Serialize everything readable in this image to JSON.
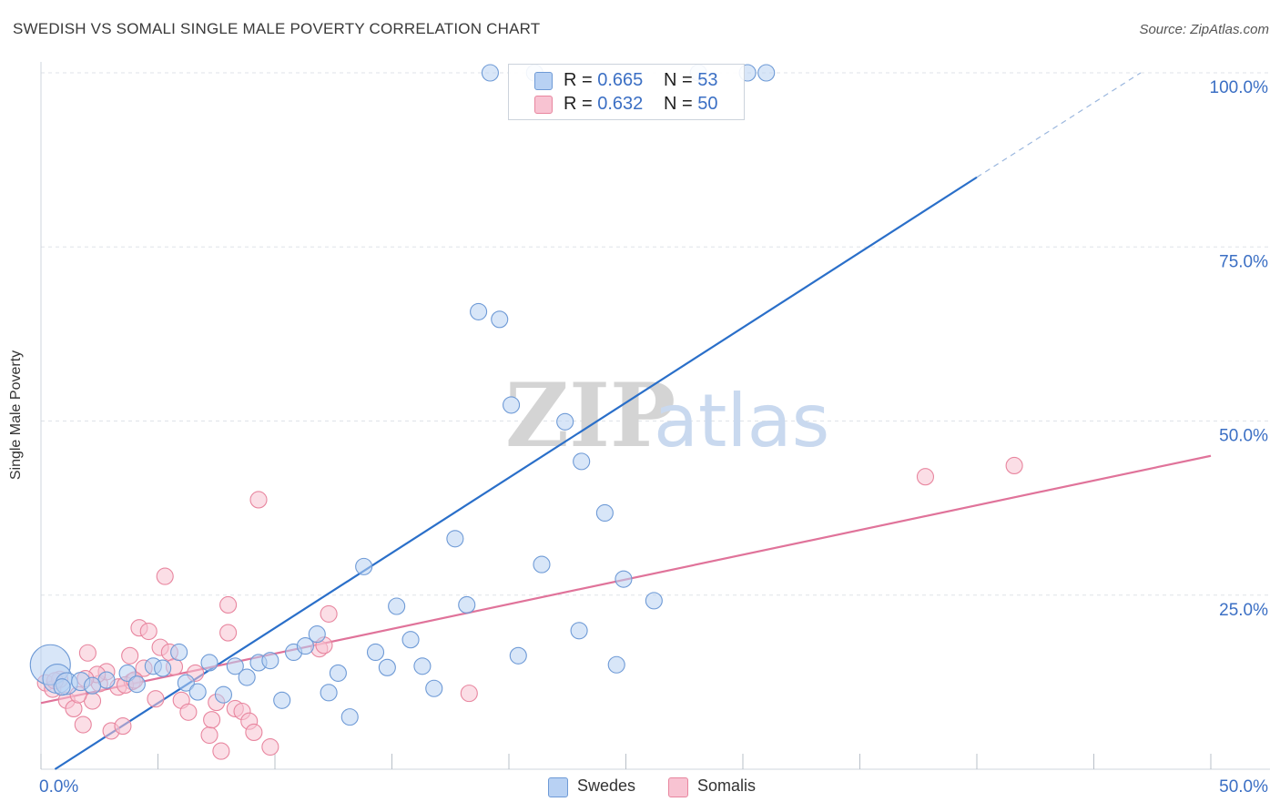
{
  "title": "SWEDISH VS SOMALI SINGLE MALE POVERTY CORRELATION CHART",
  "source": "Source: ZipAtlas.com",
  "colors": {
    "swedes_fill": "#b8d1f3",
    "swedes_stroke": "#6e9ad6",
    "swedes_line": "#2a6fc9",
    "somalis_fill": "#f8c3d2",
    "somalis_stroke": "#e8869f",
    "somalis_line": "#e0739a",
    "tick_label": "#3b6fc4",
    "grid": "#dfe3e8"
  },
  "legend": {
    "swedes": {
      "r_label": "R =",
      "r_value": "0.665",
      "n_label": "N =",
      "n_value": "53"
    },
    "somalis": {
      "r_label": "R =",
      "r_value": "0.632",
      "n_label": "N =",
      "n_value": "50"
    }
  },
  "watermark": {
    "zip": "ZIP",
    "atlas": "atlas"
  },
  "chart_data": {
    "type": "scatter",
    "title": "SWEDISH VS SOMALI SINGLE MALE POVERTY CORRELATION CHART",
    "xlabel": "",
    "ylabel": "Single Male Poverty",
    "xlim": [
      0,
      50
    ],
    "ylim": [
      0,
      100
    ],
    "x_ticks": [
      "0.0%",
      "50.0%"
    ],
    "y_ticks": [
      "25.0%",
      "50.0%",
      "75.0%",
      "100.0%"
    ],
    "grid": true,
    "legend_position": "bottom-center",
    "series": [
      {
        "name": "Swedes",
        "points": [
          [
            0.4,
            15.0,
            22
          ],
          [
            0.7,
            13.0,
            16
          ],
          [
            1.1,
            12.3,
            12
          ],
          [
            1.7,
            12.6,
            10
          ],
          [
            2.8,
            12.8,
            9
          ],
          [
            3.7,
            13.8,
            9
          ],
          [
            4.1,
            12.2,
            9
          ],
          [
            4.8,
            14.8,
            9
          ],
          [
            5.2,
            14.5,
            9
          ],
          [
            5.9,
            16.8,
            9
          ],
          [
            6.2,
            12.4,
            9
          ],
          [
            6.7,
            11.1,
            9
          ],
          [
            7.2,
            15.3,
            9
          ],
          [
            7.8,
            10.7,
            9
          ],
          [
            8.3,
            14.8,
            9
          ],
          [
            8.8,
            13.2,
            9
          ],
          [
            9.3,
            15.3,
            9
          ],
          [
            9.8,
            15.6,
            9
          ],
          [
            10.3,
            9.9,
            9
          ],
          [
            10.8,
            16.8,
            9
          ],
          [
            11.3,
            17.7,
            9
          ],
          [
            11.8,
            19.4,
            9
          ],
          [
            12.3,
            11.0,
            9
          ],
          [
            12.7,
            13.8,
            9
          ],
          [
            13.2,
            7.5,
            9
          ],
          [
            13.8,
            29.1,
            9
          ],
          [
            14.3,
            16.8,
            9
          ],
          [
            14.8,
            14.6,
            9
          ],
          [
            15.2,
            23.4,
            9
          ],
          [
            15.8,
            18.6,
            9
          ],
          [
            16.3,
            14.8,
            9
          ],
          [
            16.8,
            11.6,
            9
          ],
          [
            17.7,
            33.1,
            9
          ],
          [
            18.2,
            23.6,
            9
          ],
          [
            18.7,
            65.7,
            9
          ],
          [
            19.2,
            100.0,
            9
          ],
          [
            19.6,
            64.6,
            9
          ],
          [
            20.1,
            52.3,
            9
          ],
          [
            20.4,
            16.3,
            9
          ],
          [
            21.1,
            100.0,
            9
          ],
          [
            21.4,
            29.4,
            9
          ],
          [
            22.4,
            49.9,
            9
          ],
          [
            23.0,
            19.9,
            9
          ],
          [
            23.1,
            44.2,
            9
          ],
          [
            24.1,
            36.8,
            9
          ],
          [
            24.6,
            15.0,
            9
          ],
          [
            24.9,
            27.3,
            9
          ],
          [
            26.2,
            24.2,
            9
          ],
          [
            28.1,
            100.0,
            9
          ],
          [
            30.2,
            100.0,
            9
          ],
          [
            31.0,
            100.0,
            9
          ],
          [
            0.9,
            11.8,
            9
          ],
          [
            2.2,
            12.0,
            9
          ]
        ]
      },
      {
        "name": "Somalis",
        "points": [
          [
            0.2,
            12.4,
            9
          ],
          [
            0.5,
            11.5,
            9
          ],
          [
            0.8,
            12.9,
            9
          ],
          [
            1.1,
            9.9,
            9
          ],
          [
            1.4,
            8.7,
            9
          ],
          [
            1.8,
            6.4,
            9
          ],
          [
            2.0,
            16.7,
            9
          ],
          [
            2.2,
            9.8,
            9
          ],
          [
            2.5,
            12.3,
            9
          ],
          [
            2.8,
            14.0,
            9
          ],
          [
            3.0,
            5.5,
            9
          ],
          [
            3.3,
            11.8,
            9
          ],
          [
            3.5,
            6.2,
            9
          ],
          [
            3.8,
            16.3,
            9
          ],
          [
            3.9,
            12.6,
            9
          ],
          [
            4.2,
            20.3,
            9
          ],
          [
            4.4,
            14.5,
            9
          ],
          [
            4.6,
            19.8,
            9
          ],
          [
            4.9,
            10.1,
            9
          ],
          [
            5.1,
            17.5,
            9
          ],
          [
            5.3,
            27.7,
            9
          ],
          [
            5.5,
            16.8,
            9
          ],
          [
            5.7,
            14.7,
            9
          ],
          [
            6.0,
            9.9,
            9
          ],
          [
            6.3,
            8.2,
            9
          ],
          [
            6.6,
            13.8,
            9
          ],
          [
            7.2,
            4.9,
            9
          ],
          [
            7.3,
            7.1,
            9
          ],
          [
            7.5,
            9.6,
            9
          ],
          [
            7.7,
            2.6,
            9
          ],
          [
            8.0,
            23.6,
            9
          ],
          [
            8.0,
            19.6,
            9
          ],
          [
            8.3,
            8.7,
            9
          ],
          [
            8.6,
            8.3,
            9
          ],
          [
            8.9,
            6.9,
            9
          ],
          [
            9.1,
            5.3,
            9
          ],
          [
            9.3,
            38.7,
            9
          ],
          [
            9.8,
            3.2,
            9
          ],
          [
            11.9,
            17.3,
            9
          ],
          [
            12.1,
            17.8,
            9
          ],
          [
            12.3,
            22.3,
            9
          ],
          [
            18.3,
            10.9,
            9
          ],
          [
            37.8,
            42.0,
            9
          ],
          [
            41.6,
            43.6,
            9
          ],
          [
            1.6,
            10.7,
            9
          ],
          [
            2.4,
            13.6,
            9
          ],
          [
            3.6,
            12.1,
            9
          ],
          [
            0.6,
            12.7,
            9
          ],
          [
            1.9,
            13.0,
            9
          ],
          [
            4.0,
            12.8,
            9
          ]
        ]
      }
    ],
    "trendlines": [
      {
        "series": "Swedes",
        "x_start": 0.6,
        "y_start": 0.0,
        "x_solid_end": 40.0,
        "y_solid_end": 85.0,
        "x_end": 47.0,
        "y_end": 100.0,
        "dashed_extension": true
      },
      {
        "series": "Somalis",
        "x_start": 0.0,
        "y_start": 9.5,
        "x_end": 50.0,
        "y_end": 45.0
      }
    ]
  }
}
